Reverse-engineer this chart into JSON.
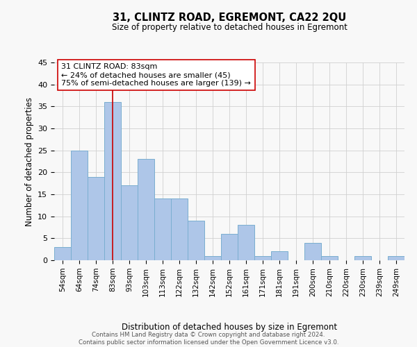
{
  "title": "31, CLINTZ ROAD, EGREMONT, CA22 2QU",
  "subtitle": "Size of property relative to detached houses in Egremont",
  "xlabel": "Distribution of detached houses by size in Egremont",
  "ylabel": "Number of detached properties",
  "bar_labels": [
    "54sqm",
    "64sqm",
    "74sqm",
    "83sqm",
    "93sqm",
    "103sqm",
    "113sqm",
    "122sqm",
    "132sqm",
    "142sqm",
    "152sqm",
    "161sqm",
    "171sqm",
    "181sqm",
    "191sqm",
    "200sqm",
    "210sqm",
    "220sqm",
    "230sqm",
    "239sqm",
    "249sqm"
  ],
  "bar_values": [
    3,
    25,
    19,
    36,
    17,
    23,
    14,
    14,
    9,
    1,
    6,
    8,
    1,
    2,
    0,
    4,
    1,
    0,
    1,
    0,
    1
  ],
  "bar_color": "#aec6e8",
  "bar_edge_color": "#7aaed0",
  "highlight_x_label": "83sqm",
  "highlight_line_color": "#cc0000",
  "annotation_text": "31 CLINTZ ROAD: 83sqm\n← 24% of detached houses are smaller (45)\n75% of semi-detached houses are larger (139) →",
  "annotation_box_color": "#ffffff",
  "annotation_box_edge": "#cc0000",
  "ylim": [
    0,
    45
  ],
  "yticks": [
    0,
    5,
    10,
    15,
    20,
    25,
    30,
    35,
    40,
    45
  ],
  "footer_line1": "Contains HM Land Registry data © Crown copyright and database right 2024.",
  "footer_line2": "Contains public sector information licensed under the Open Government Licence v3.0.",
  "background_color": "#f8f8f8",
  "grid_color": "#d0d0d0"
}
